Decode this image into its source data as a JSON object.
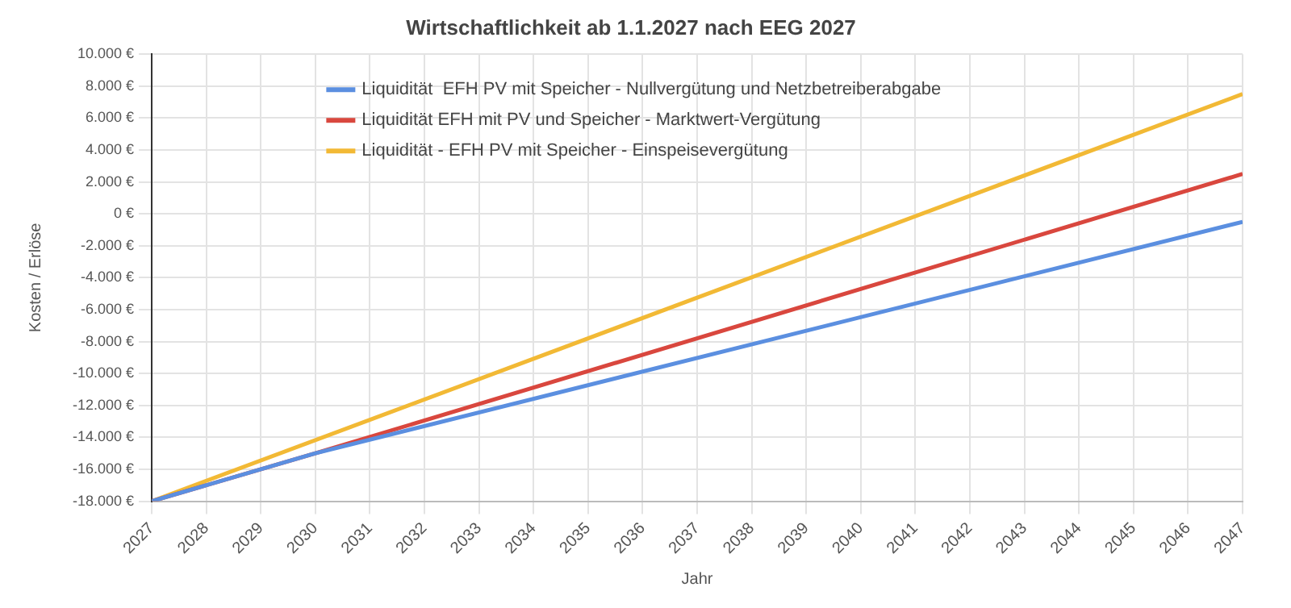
{
  "chart_data": {
    "type": "line",
    "title": "Wirtschaftlichkeit ab 1.1.2027 nach EEG 2027",
    "xlabel": "Jahr",
    "ylabel": "Kosten / Erlöse",
    "series": [
      {
        "name": "Liquidität  EFH PV mit Speicher - Nullvergütung und Netzbetreiberabgabe",
        "color": "#5b8fe0",
        "x": [
          2027,
          2030,
          2047
        ],
        "values": [
          -18000,
          -15000,
          -500
        ]
      },
      {
        "name": "Liquidität EFH mit PV und Speicher - Marktwert-Vergütung",
        "color": "#d9473e",
        "x": [
          2027,
          2030,
          2047
        ],
        "values": [
          -18000,
          -15000,
          2500
        ]
      },
      {
        "name": "Liquidität - EFH PV mit Speicher - Einspeisevergütung",
        "color": "#f2b935",
        "x": [
          2027,
          2047
        ],
        "values": [
          -18000,
          7500
        ]
      }
    ],
    "xlim": [
      2027,
      2047
    ],
    "xticks": [
      2027,
      2028,
      2029,
      2030,
      2031,
      2032,
      2033,
      2034,
      2035,
      2036,
      2037,
      2038,
      2039,
      2040,
      2041,
      2042,
      2043,
      2044,
      2045,
      2046,
      2047
    ],
    "ylim": [
      -18000,
      10000
    ],
    "yticks": [
      {
        "value": -18000,
        "label": "-18.000 €"
      },
      {
        "value": -16000,
        "label": "-16.000 €"
      },
      {
        "value": -14000,
        "label": "-14.000 €"
      },
      {
        "value": -12000,
        "label": "-12.000 €"
      },
      {
        "value": -10000,
        "label": "-10.000 €"
      },
      {
        "value": -8000,
        "label": "-8.000 €"
      },
      {
        "value": -6000,
        "label": "-6.000 €"
      },
      {
        "value": -4000,
        "label": "-4.000 €"
      },
      {
        "value": -2000,
        "label": "-2.000 €"
      },
      {
        "value": 0,
        "label": "0 €"
      },
      {
        "value": 2000,
        "label": "2.000 €"
      },
      {
        "value": 4000,
        "label": "4.000 €"
      },
      {
        "value": 6000,
        "label": "6.000 €"
      },
      {
        "value": 8000,
        "label": "8.000 €"
      },
      {
        "value": 10000,
        "label": "10.000 €"
      }
    ],
    "grid": true,
    "legend": "top left",
    "marker": "none",
    "line_style": "solid"
  }
}
